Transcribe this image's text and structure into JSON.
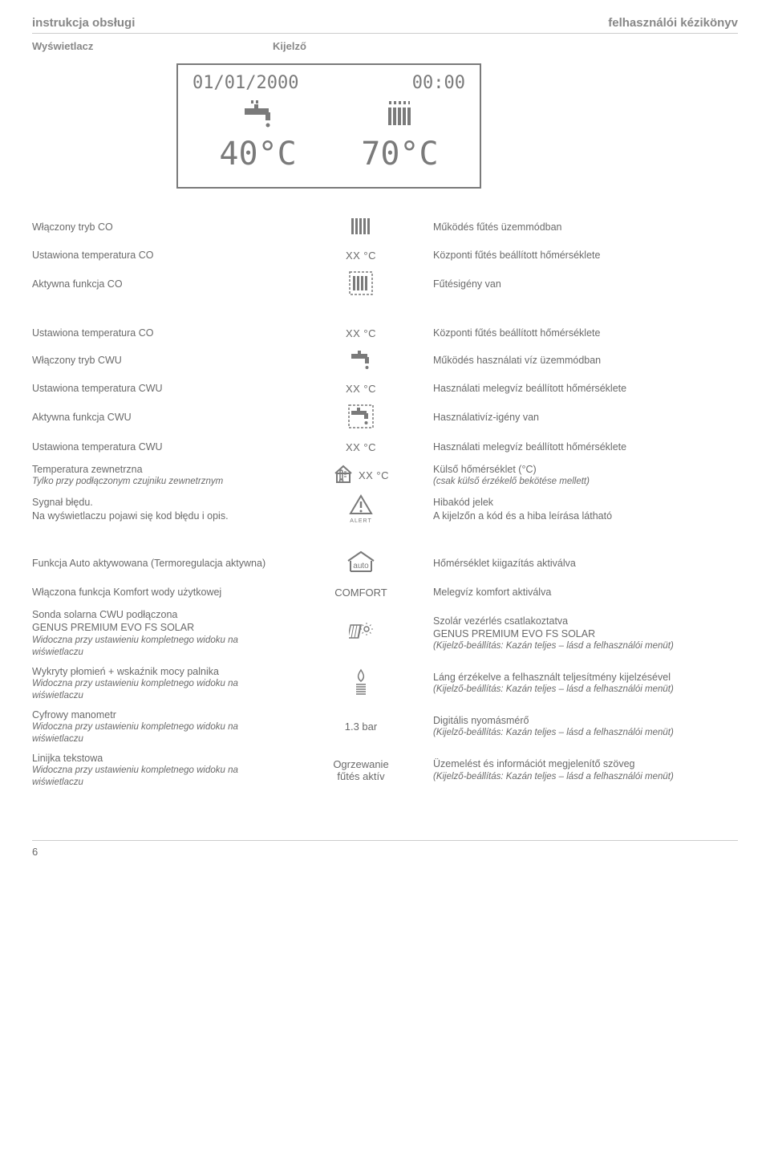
{
  "header": {
    "left": "instrukcja obsługi",
    "right": "felhasználói kézikönyv"
  },
  "subheader": {
    "left": "Wyświetlacz",
    "right": "Kijelző"
  },
  "display": {
    "date": "01/01/2000",
    "time": "00:00",
    "temp_left": "40°C",
    "temp_right": "70°C"
  },
  "colors": {
    "text": "#6a6a6a",
    "heading": "#878787",
    "border": "#7a7a7a",
    "rule": "#cccccc",
    "bg": "#ffffff"
  },
  "block1": [
    {
      "left": "Włączony tryb CO",
      "mid_type": "radiator",
      "right": "Működés fűtés üzemmódban"
    },
    {
      "left": "Ustawiona temperatura CO",
      "mid_type": "xx",
      "mid": "XX °C",
      "right": "Központi fűtés beállított hőmérséklete"
    },
    {
      "left": "Aktywna funkcja CO",
      "mid_type": "radiator-dashed",
      "right": "Fűtésigény van"
    }
  ],
  "block2": [
    {
      "left": "Ustawiona temperatura CO",
      "mid_type": "xx",
      "mid": "XX °C",
      "right": "Központi fűtés beállított hőmérséklete"
    },
    {
      "left": "Włączony tryb CWU",
      "mid_type": "faucet",
      "right": "Működés használati víz üzemmódban"
    },
    {
      "left": "Ustawiona temperatura CWU",
      "mid_type": "xx",
      "mid": "XX °C",
      "right": "Használati melegvíz beállított hőmérséklete"
    },
    {
      "left": "Aktywna funkcja CWU",
      "mid_type": "faucet-dashed",
      "right": "Használativíz-igény van"
    },
    {
      "left": "Ustawiona temperatura CWU",
      "mid_type": "xx",
      "mid": "XX °C",
      "right": "Használati melegvíz beállított hőmérséklete"
    },
    {
      "left": "Temperatura zewnetrzna",
      "left_sub": "Tylko przy podłączonym czujniku zewnetrznym",
      "mid_type": "house-xx",
      "mid": "XX °C",
      "right": " Külső hőmérséklet (°C)",
      "right_sub": "(csak külső érzékelő bekötése mellett)"
    },
    {
      "left": "Sygnał błędu.",
      "left_sub2": "Na wyświetlaczu pojawi się kod błędu i opis.",
      "mid_type": "alert",
      "right": "Hibakód jelek",
      "right_sub2": "A kijelzőn a kód és a hiba leírása látható"
    }
  ],
  "block3": [
    {
      "left": "Funkcja Auto aktywowana (Termoregulacja aktywna)",
      "mid_type": "auto",
      "right": "Hőmérséklet kiigazítás aktiválva"
    },
    {
      "left": "Włączona funkcja Komfort wody użytkowej",
      "mid_type": "text",
      "mid": "COMFORT",
      "right": "Melegvíz komfort aktiválva"
    },
    {
      "left": "Sonda solarna CWU podłączona",
      "left2": "GENUS PREMIUM EVO FS SOLAR",
      "left_sub": "Widoczna przy ustawieniu kompletnego widoku na wiświetlaczu",
      "mid_type": "solar",
      "right": "Szolár vezérlés csatlakoztatva",
      "right2": "GENUS PREMIUM EVO FS SOLAR",
      "right_sub": "(Kijelző-beállítás: Kazán teljes – lásd a felhasználói menüt)"
    },
    {
      "left": "Wykryty płomień + wskaźnik mocy palnika",
      "left_sub": "Widoczna przy ustawieniu kompletnego widoku na wiświetlaczu",
      "mid_type": "flame",
      "right": "Láng érzékelve a felhasznált teljesítmény kijelzésével",
      "right_sub": "(Kijelző-beállítás: Kazán teljes – lásd a felhasználói menüt)"
    },
    {
      "left": "Cyfrowy manometr",
      "left_sub": "Widoczna przy ustawieniu kompletnego widoku na wiświetlaczu",
      "mid_type": "text",
      "mid": "1.3 bar",
      "right": "Digitális nyomásmérő",
      "right_sub": "(Kijelző-beállítás: Kazán teljes – lásd a felhasználói menüt)"
    },
    {
      "left": "Linijka tekstowa",
      "left_sub": "Widoczna przy ustawieniu kompletnego widoku na wiświetlaczu",
      "mid_type": "text-2line",
      "mid": "Ogrzewanie",
      "mid2": "fűtés aktív",
      "right": "Üzemelést és információt megjelenítő szöveg",
      "right_sub": "(Kijelző-beállítás: Kazán teljes – lásd a felhasználói menüt)"
    }
  ],
  "page_number": "6",
  "alert_label": "ALERT",
  "auto_label": "auto"
}
